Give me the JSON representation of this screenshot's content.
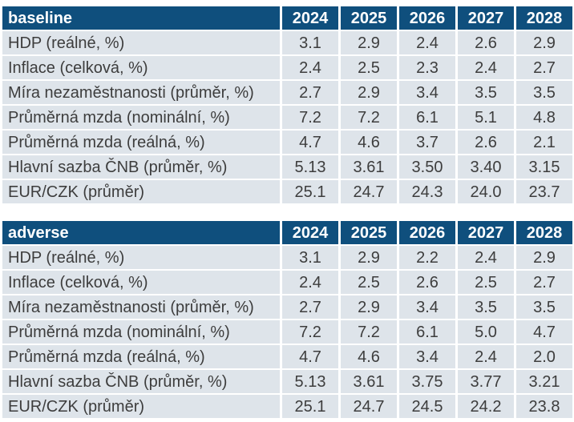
{
  "colors": {
    "header_bg": "#0f4f7d",
    "row_bg": "#dee4ea",
    "body_text": "#3d3d3d",
    "header_text": "#ffffff",
    "page_bg": "#ffffff"
  },
  "chart_data": [
    {
      "type": "table",
      "scenario": "baseline",
      "columns": [
        "2024",
        "2025",
        "2026",
        "2027",
        "2028"
      ],
      "rows": [
        {
          "label": "HDP (reálné, %)",
          "values": [
            "3.1",
            "2.9",
            "2.4",
            "2.6",
            "2.9"
          ]
        },
        {
          "label": "Inflace (celková, %)",
          "values": [
            "2.4",
            "2.5",
            "2.3",
            "2.4",
            "2.7"
          ]
        },
        {
          "label": "Míra nezaměstnanosti (průměr, %)",
          "values": [
            "2.7",
            "2.9",
            "3.4",
            "3.5",
            "3.5"
          ]
        },
        {
          "label": "Průměrná mzda (nominální, %)",
          "values": [
            "7.2",
            "7.2",
            "6.1",
            "5.1",
            "4.8"
          ]
        },
        {
          "label": "Průměrná mzda (reálná, %)",
          "values": [
            "4.7",
            "4.6",
            "3.7",
            "2.6",
            "2.1"
          ]
        },
        {
          "label": "Hlavní sazba ČNB (průměr, %)",
          "values": [
            "5.13",
            "3.61",
            "3.50",
            "3.40",
            "3.15"
          ]
        },
        {
          "label": "EUR/CZK (průměr)",
          "values": [
            "25.1",
            "24.7",
            "24.3",
            "24.0",
            "23.7"
          ]
        }
      ]
    },
    {
      "type": "table",
      "scenario": "adverse",
      "columns": [
        "2024",
        "2025",
        "2026",
        "2027",
        "2028"
      ],
      "rows": [
        {
          "label": "HDP (reálné, %)",
          "values": [
            "3.1",
            "2.9",
            "2.2",
            "2.4",
            "2.9"
          ]
        },
        {
          "label": "Inflace (celková, %)",
          "values": [
            "2.4",
            "2.5",
            "2.6",
            "2.5",
            "2.7"
          ]
        },
        {
          "label": "Míra nezaměstnanosti (průměr, %)",
          "values": [
            "2.7",
            "2.9",
            "3.4",
            "3.5",
            "3.5"
          ]
        },
        {
          "label": "Průměrná mzda (nominální, %)",
          "values": [
            "7.2",
            "7.2",
            "6.1",
            "5.0",
            "4.7"
          ]
        },
        {
          "label": "Průměrná mzda (reálná, %)",
          "values": [
            "4.7",
            "4.6",
            "3.4",
            "2.4",
            "2.0"
          ]
        },
        {
          "label": "Hlavní sazba ČNB (průměr, %)",
          "values": [
            "5.13",
            "3.61",
            "3.75",
            "3.77",
            "3.21"
          ]
        },
        {
          "label": "EUR/CZK (průměr)",
          "values": [
            "25.1",
            "24.7",
            "24.5",
            "24.2",
            "23.8"
          ]
        }
      ]
    }
  ]
}
